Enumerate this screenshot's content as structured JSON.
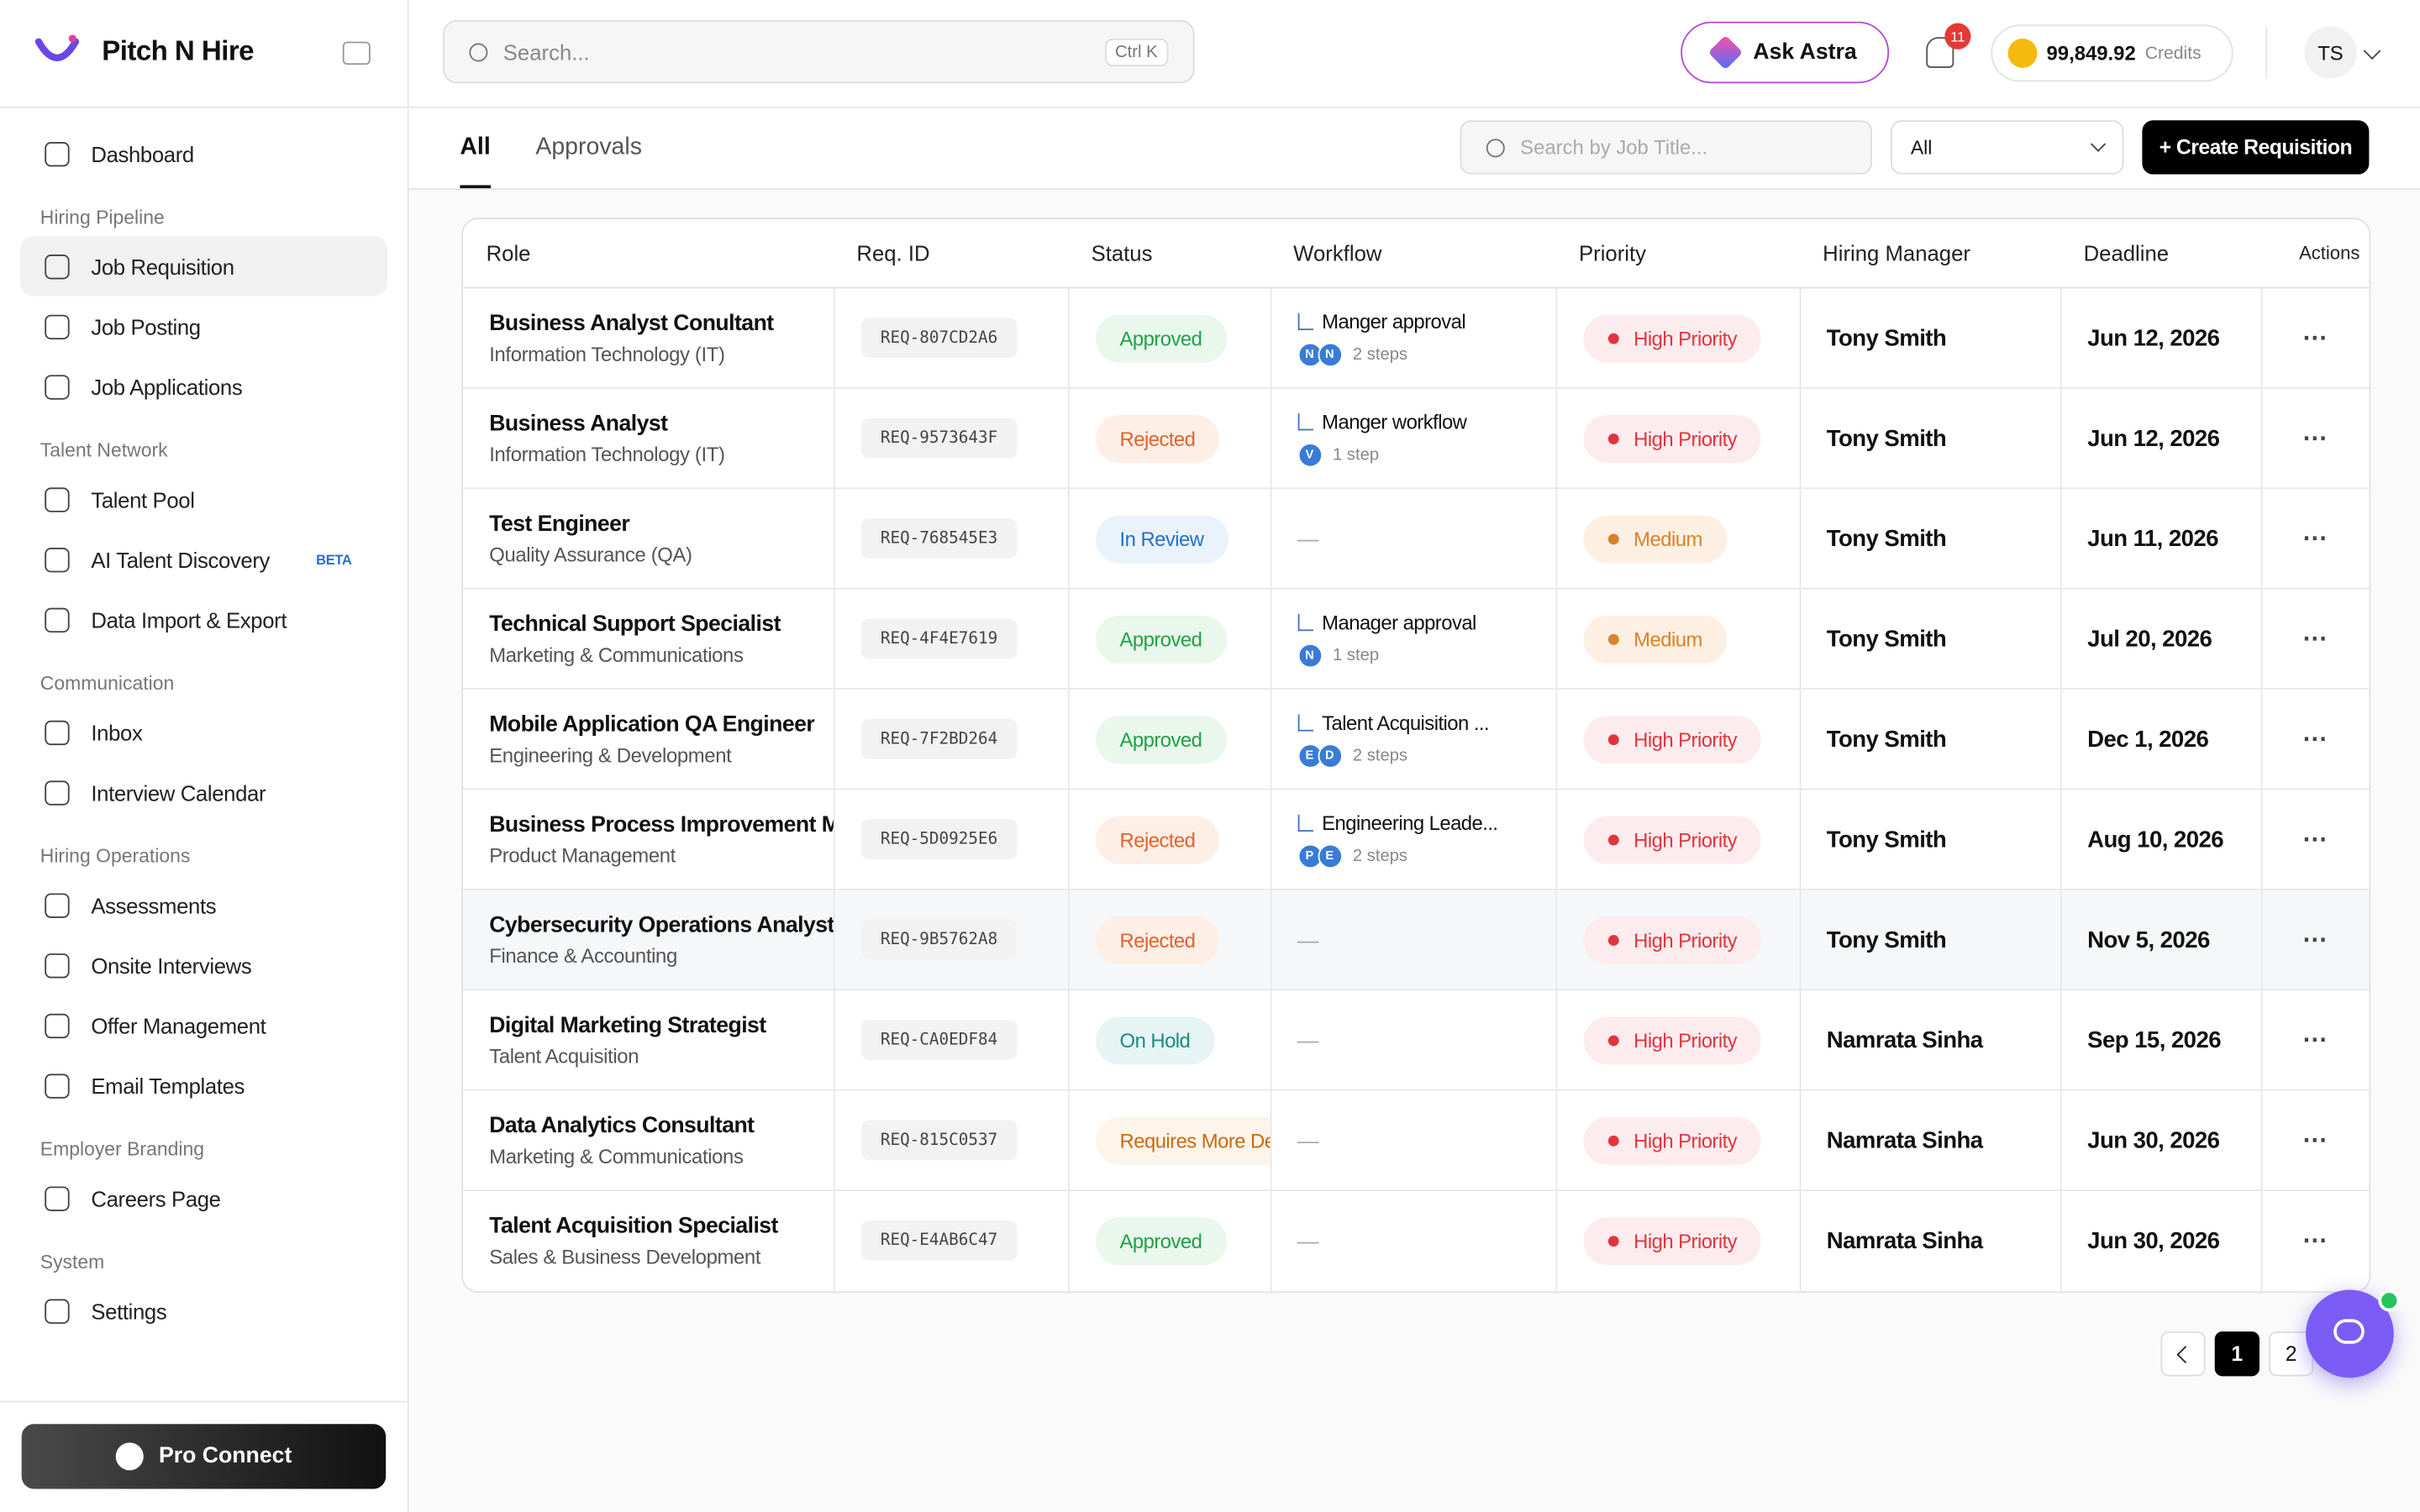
{
  "brand": "Pitch N Hire",
  "search": {
    "placeholder": "Search...",
    "shortcut": "Ctrl K"
  },
  "header": {
    "ask": "Ask Astra",
    "notifications": "11",
    "credits": "99,849.92",
    "credits_label": "Credits",
    "avatar": "TS"
  },
  "sidebar": {
    "sections": [
      {
        "title": null,
        "items": [
          "Dashboard"
        ]
      },
      {
        "title": "Hiring Pipeline",
        "items": [
          "Job Requisition",
          "Job Posting",
          "Job Applications"
        ]
      },
      {
        "title": "Talent Network",
        "items": [
          "Talent Pool",
          "AI Talent Discovery",
          "Data Import & Export"
        ]
      },
      {
        "title": "Communication",
        "items": [
          "Inbox",
          "Interview Calendar"
        ]
      },
      {
        "title": "Hiring Operations",
        "items": [
          "Assessments",
          "Onsite Interviews",
          "Offer Management",
          "Email Templates"
        ]
      },
      {
        "title": "Employer Branding",
        "items": [
          "Careers Page"
        ]
      },
      {
        "title": "System",
        "items": [
          "Settings"
        ]
      }
    ],
    "badge": "BETA",
    "pro": "Pro Connect"
  },
  "tabs": [
    "All",
    "Approvals"
  ],
  "toolbar": {
    "search_placeholder": "Search by Job Title...",
    "filter": "All",
    "create": "+ Create Requisition"
  },
  "table": {
    "columns": [
      "Role",
      "Req. ID",
      "Status",
      "Workflow",
      "Priority",
      "Hiring Manager",
      "Deadline",
      "Actions"
    ],
    "rows": [
      {
        "role": "Business Analyst Conultant",
        "dept": "Information Technology (IT)",
        "id": "REQ-807CD2A6",
        "status": {
          "label": "Approved",
          "tone": "green"
        },
        "workflow": {
          "name": "Manger approval",
          "avatars": [
            "N",
            "N"
          ],
          "steps": "2 steps"
        },
        "priority": {
          "label": "High Priority",
          "tone": "red"
        },
        "manager": "Tony Smith",
        "deadline": "Jun 12, 2026"
      },
      {
        "role": "Business Analyst",
        "dept": "Information Technology (IT)",
        "id": "REQ-9573643F",
        "status": {
          "label": "Rejected",
          "tone": "orange"
        },
        "workflow": {
          "name": "Manger workflow",
          "avatars": [
            "V"
          ],
          "steps": "1 step"
        },
        "priority": {
          "label": "High Priority",
          "tone": "red"
        },
        "manager": "Tony Smith",
        "deadline": "Jun 12, 2026"
      },
      {
        "role": "Test Engineer",
        "dept": "Quality Assurance (QA)",
        "id": "REQ-768545E3",
        "status": {
          "label": "In Review",
          "tone": "blue"
        },
        "workflow": "—",
        "priority": {
          "label": "Medium",
          "tone": "amber"
        },
        "manager": "Tony Smith",
        "deadline": "Jun 11, 2026"
      },
      {
        "role": "Technical Support Specialist",
        "dept": "Marketing & Communications",
        "id": "REQ-4F4E7619",
        "status": {
          "label": "Approved",
          "tone": "green"
        },
        "workflow": {
          "name": "Manager approval",
          "avatars": [
            "N"
          ],
          "steps": "1 step"
        },
        "priority": {
          "label": "Medium",
          "tone": "amber"
        },
        "manager": "Tony Smith",
        "deadline": "Jul 20, 2026"
      },
      {
        "role": "Mobile Application QA Engineer",
        "dept": "Engineering & Development",
        "id": "REQ-7F2BD264",
        "status": {
          "label": "Approved",
          "tone": "green"
        },
        "workflow": {
          "name": "Talent Acquisition ...",
          "avatars": [
            "E",
            "D"
          ],
          "steps": "2 steps"
        },
        "priority": {
          "label": "High Priority",
          "tone": "red"
        },
        "manager": "Tony Smith",
        "deadline": "Dec 1, 2026"
      },
      {
        "role": "Business Process Improvement M",
        "dept": "Product Management",
        "id": "REQ-5D0925E6",
        "status": {
          "label": "Rejected",
          "tone": "orange"
        },
        "workflow": {
          "name": "Engineering Leade...",
          "avatars": [
            "P",
            "E"
          ],
          "steps": "2 steps"
        },
        "priority": {
          "label": "High Priority",
          "tone": "red"
        },
        "manager": "Tony Smith",
        "deadline": "Aug 10, 2026"
      },
      {
        "role": "Cybersecurity Operations Analyst",
        "dept": "Finance & Accounting",
        "id": "REQ-9B5762A8",
        "status": {
          "label": "Rejected",
          "tone": "orange"
        },
        "workflow": "—",
        "priority": {
          "label": "High Priority",
          "tone": "red"
        },
        "manager": "Tony Smith",
        "deadline": "Nov 5, 2026"
      },
      {
        "role": "Digital Marketing Strategist",
        "dept": "Talent Acquisition",
        "id": "REQ-CA0EDF84",
        "status": {
          "label": "On Hold",
          "tone": "teal"
        },
        "workflow": "—",
        "priority": {
          "label": "High Priority",
          "tone": "red"
        },
        "manager": "Namrata Sinha",
        "deadline": "Sep 15, 2026"
      },
      {
        "role": "Data Analytics Consultant",
        "dept": "Marketing & Communications",
        "id": "REQ-815C0537",
        "status": {
          "label": "Requires More Details",
          "tone": "amber"
        },
        "workflow": "—",
        "priority": {
          "label": "High Priority",
          "tone": "red"
        },
        "manager": "Namrata Sinha",
        "deadline": "Jun 30, 2026"
      },
      {
        "role": "Talent Acquisition Specialist",
        "dept": "Sales & Business Development",
        "id": "REQ-E4AB6C47",
        "status": {
          "label": "Approved",
          "tone": "green"
        },
        "workflow": "—",
        "priority": {
          "label": "High Priority",
          "tone": "red"
        },
        "manager": "Namrata Sinha",
        "deadline": "Jun 30, 2026"
      }
    ]
  },
  "pagination": [
    "1",
    "2"
  ]
}
